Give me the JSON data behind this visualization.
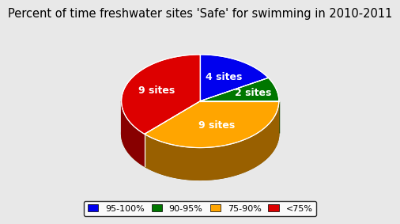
{
  "title": "Percent of time freshwater sites 'Safe' for swimming in 2010-2011",
  "slices": [
    4,
    2,
    9,
    9
  ],
  "labels": [
    "4 sites",
    "2 sites",
    "9 sites",
    "9 sites"
  ],
  "colors": [
    "#0000EE",
    "#007700",
    "#FFA500",
    "#DD0000"
  ],
  "side_colors": [
    "#00008A",
    "#004400",
    "#996000",
    "#880000"
  ],
  "bottom_color": "#7A5500",
  "legend_labels": [
    "95-100%",
    "90-95%",
    "75-90%",
    "<75%"
  ],
  "legend_colors": [
    "#0000EE",
    "#007700",
    "#FFA500",
    "#DD0000"
  ],
  "background_color": "#E8E8E8",
  "startangle": 90,
  "title_fontsize": 10.5
}
